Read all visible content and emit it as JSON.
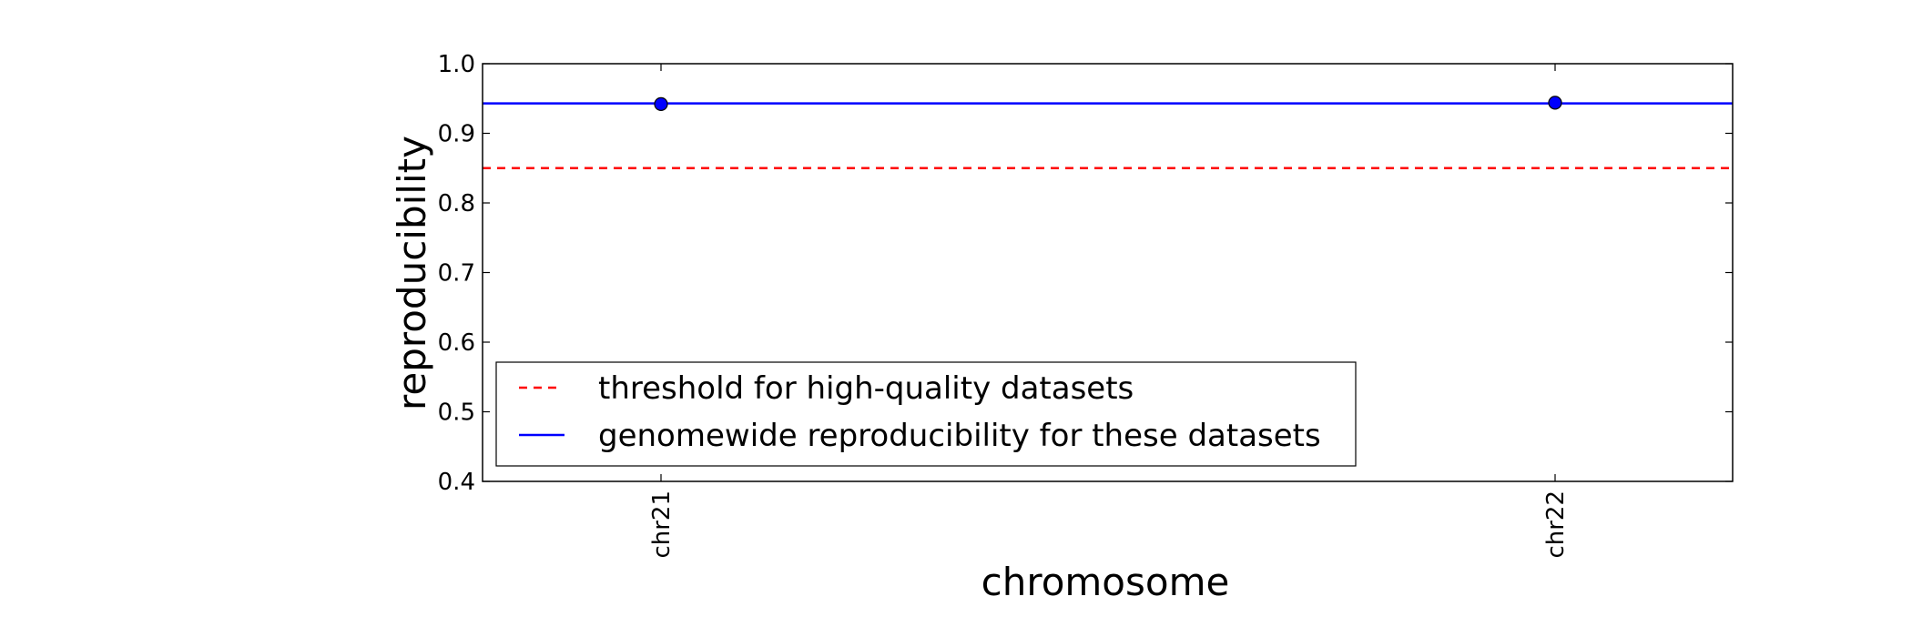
{
  "chart_data": {
    "type": "line",
    "title": "",
    "xlabel": "chromosome",
    "ylabel": "reproducibility",
    "categories": [
      "chr21",
      "chr22"
    ],
    "ylim": [
      0.4,
      1.0
    ],
    "yticks": [
      "0.4",
      "0.5",
      "0.6",
      "0.7",
      "0.8",
      "0.9",
      "1.0"
    ],
    "grid": false,
    "points": {
      "values": [
        0.942,
        0.944
      ],
      "color": "#0000ff"
    },
    "threshold": {
      "name": "threshold for high-quality datasets",
      "value": 0.85,
      "color": "#ff0000",
      "style": "dashed"
    },
    "genomewide": {
      "name": "genomewide reproducibility for these datasets",
      "value": 0.943,
      "color": "#0000ff",
      "style": "solid"
    },
    "legend_position": "lower-left"
  }
}
